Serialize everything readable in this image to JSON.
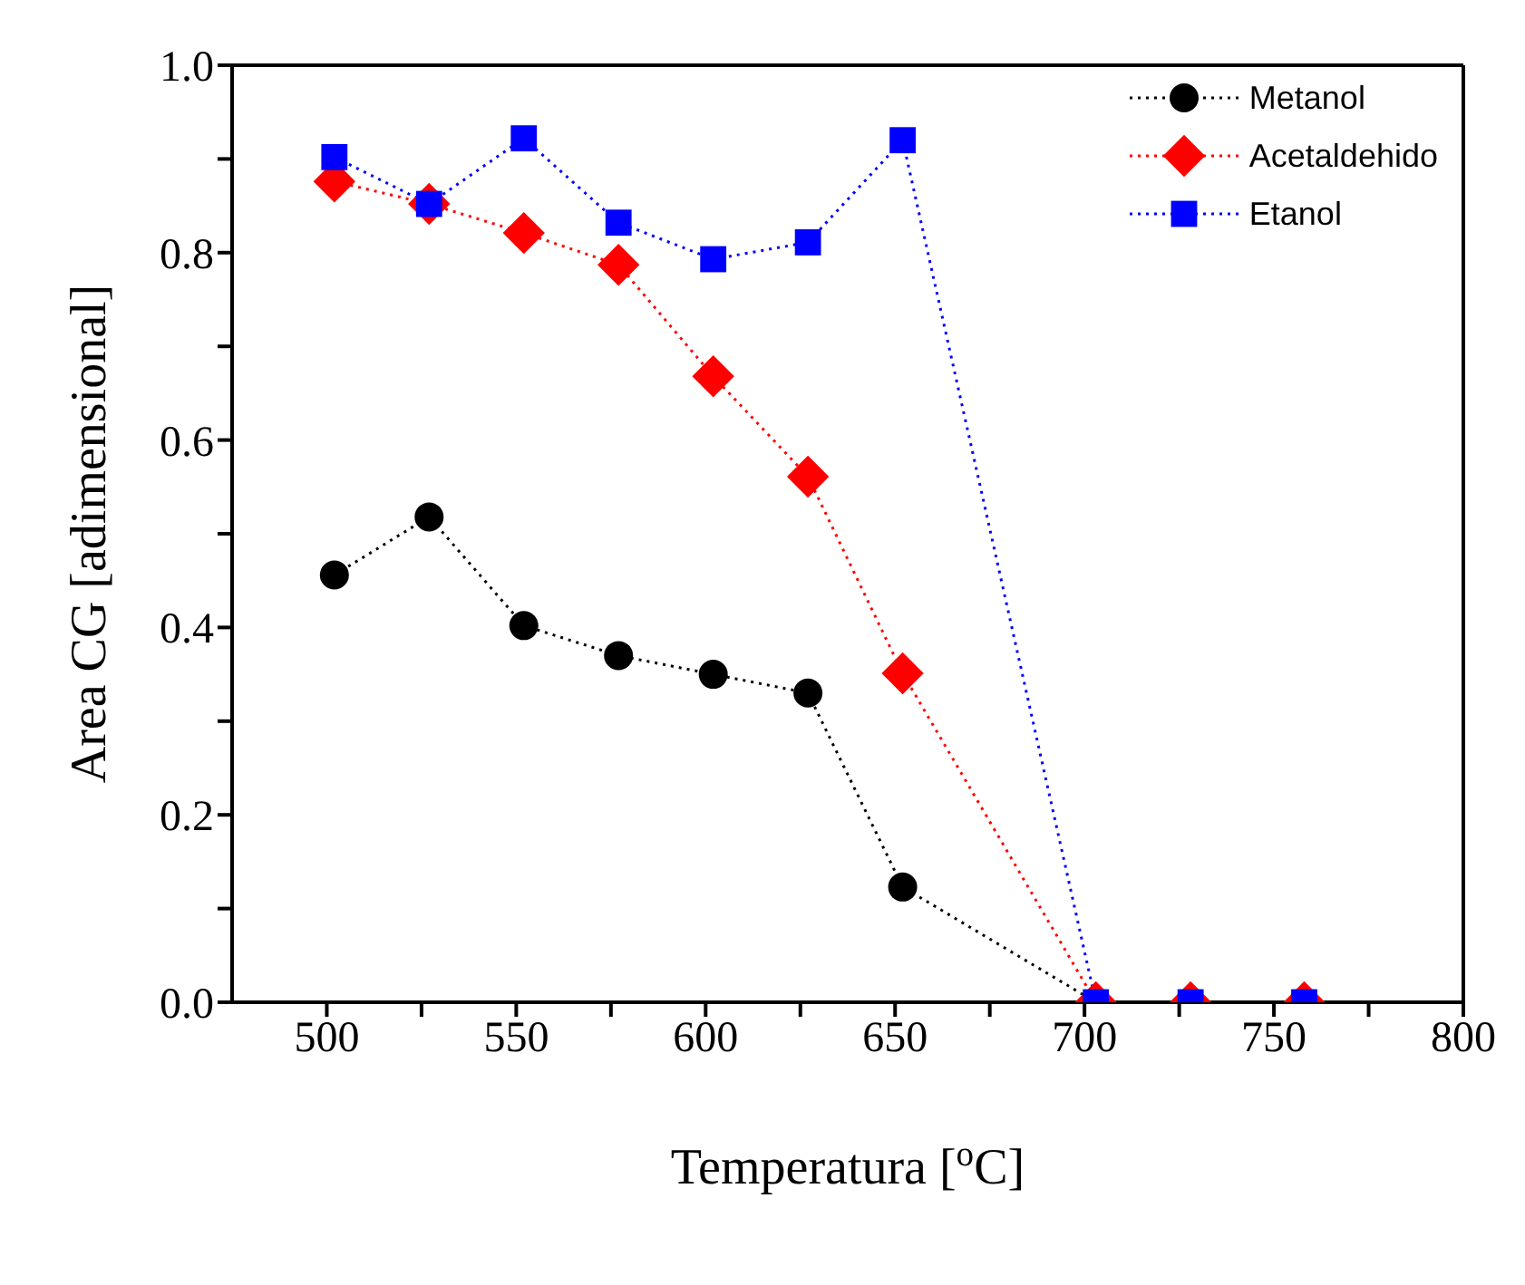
{
  "chart_data": {
    "type": "line",
    "xlabel": "Temperatura [$^{o}$C]",
    "ylabel": "Area CG [adimensional]",
    "x": [
      502,
      527,
      552,
      577,
      602,
      627,
      652,
      703,
      728,
      758
    ],
    "series": [
      {
        "name": "Metanol",
        "color": "#000000",
        "marker": "circle",
        "values": [
          0.456,
          0.518,
          0.402,
          0.37,
          0.35,
          0.33,
          0.123,
          0,
          0,
          0
        ]
      },
      {
        "name": "Acetaldehido",
        "color": "#ff0000",
        "marker": "diamond",
        "values": [
          0.876,
          0.852,
          0.821,
          0.787,
          0.668,
          0.561,
          0.351,
          0,
          0,
          0
        ]
      },
      {
        "name": "Etanol",
        "color": "#0000ff",
        "marker": "square",
        "values": [
          0.902,
          0.852,
          0.922,
          0.832,
          0.793,
          0.811,
          0.92,
          0,
          0,
          0
        ]
      }
    ],
    "xlim": [
      475,
      800
    ],
    "xticks": [
      500,
      {
        "value": 525,
        "label": null
      },
      550,
      {
        "value": 575,
        "label": null
      },
      600,
      {
        "value": 625,
        "label": null
      },
      650,
      {
        "value": 675,
        "label": null
      },
      700,
      {
        "value": 725,
        "label": null
      },
      750,
      {
        "value": 775,
        "label": null
      },
      800
    ],
    "ylim": [
      0,
      1
    ],
    "yticks": [
      {
        "value": 0,
        "label": "0.0"
      },
      {
        "value": 0.1,
        "label": null
      },
      {
        "value": 0.2,
        "label": "0.2"
      },
      {
        "value": 0.3,
        "label": null
      },
      {
        "value": 0.4,
        "label": "0.4"
      },
      {
        "value": 0.5,
        "label": null
      },
      {
        "value": 0.6,
        "label": "0.6"
      },
      {
        "value": 0.7,
        "label": null
      },
      {
        "value": 0.8,
        "label": "0.8"
      },
      {
        "value": 0.9,
        "label": null
      },
      {
        "value": 1,
        "label": "1.0"
      }
    ],
    "grid": false,
    "legend": "top right",
    "line_style": "dotted"
  }
}
